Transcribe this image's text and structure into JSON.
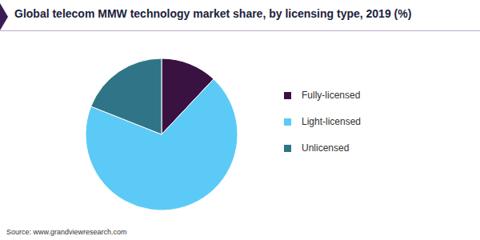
{
  "chart_data": {
    "type": "pie",
    "title": "Global telecom MMW technology market share, by licensing type, 2019 (%)",
    "categories": [
      "Fully-licensed",
      "Light-licensed",
      "Unlicensed"
    ],
    "values": [
      12,
      69,
      19
    ],
    "colors": [
      "#3a1242",
      "#5ccaf6",
      "#2f7587"
    ],
    "legend": "right",
    "data_labels": false,
    "source": "Source: www.grandviewresearch.com"
  }
}
